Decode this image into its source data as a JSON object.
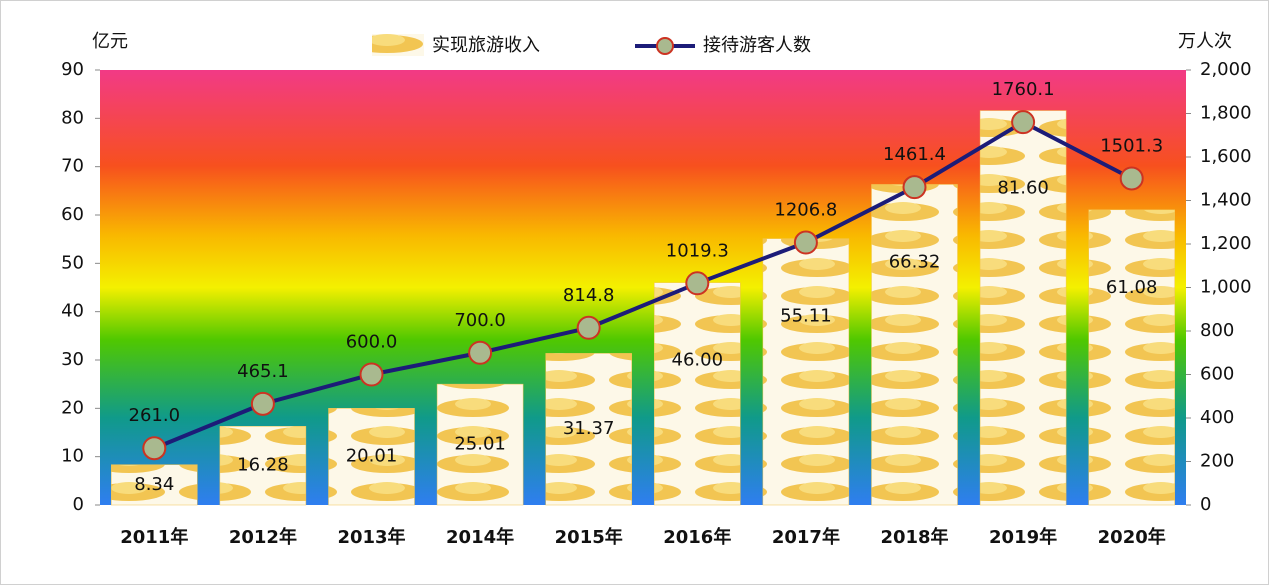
{
  "chart_data": {
    "type": "bar",
    "y_axis_title": "亿元",
    "y2_axis_title": "万人次",
    "categories": [
      "2011年",
      "2012年",
      "2013年",
      "2014年",
      "2015年",
      "2016年",
      "2017年",
      "2018年",
      "2019年",
      "2020年"
    ],
    "series": [
      {
        "name": "实现旅游收入",
        "type": "bar",
        "color": "#f2c552",
        "values": [
          8.34,
          16.28,
          20.01,
          25.01,
          31.37,
          46.0,
          55.11,
          66.32,
          81.6,
          61.08
        ],
        "value_labels": [
          "8.34",
          "16.28",
          "20.01",
          "25.01",
          "31.37",
          "46.00",
          "55.11",
          "66.32",
          "81.60",
          "61.08"
        ]
      },
      {
        "name": "接待游客人数",
        "type": "line",
        "axis": "y2",
        "color": "#1c1c78",
        "marker_color": "#a9b98f",
        "marker_edge": "#cc3322",
        "values": [
          261.0,
          465.1,
          600.0,
          700.0,
          814.8,
          1019.3,
          1206.8,
          1461.4,
          1760.1,
          1501.3
        ],
        "value_labels": [
          "261.0",
          "465.1",
          "600.0",
          "700.0",
          "814.8",
          "1019.3",
          "1206.8",
          "1461.4",
          "1760.1",
          "1501.3"
        ]
      }
    ],
    "ylim": [
      0,
      90
    ],
    "yticks": [
      0,
      10,
      20,
      30,
      40,
      50,
      60,
      70,
      80,
      90
    ],
    "y2lim": [
      0,
      2000
    ],
    "y2ticks": [
      0,
      200,
      400,
      600,
      800,
      {
        "value": 1000,
        "label": "1,000"
      },
      {
        "value": 1200,
        "label": "1,200"
      },
      {
        "value": 1400,
        "label": "1,400"
      },
      {
        "value": 1600,
        "label": "1,600"
      },
      {
        "value": 1800,
        "label": "1,800"
      },
      {
        "value": 2000,
        "label": "2,000"
      }
    ],
    "legend": "top"
  }
}
